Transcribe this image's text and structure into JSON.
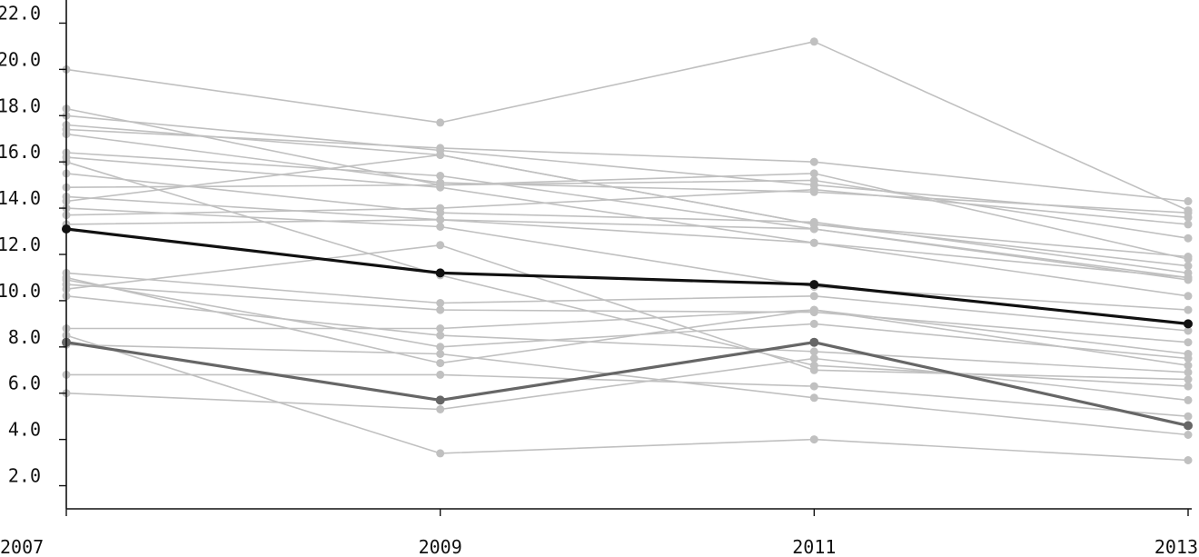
{
  "chart_data": {
    "type": "line",
    "title": "",
    "xlabel": "",
    "ylabel": "",
    "x": [
      "2007",
      "2009",
      "2011",
      "2013"
    ],
    "ylim": [
      1.0,
      23.0
    ],
    "y_ticks": [
      "2.0",
      "4.0",
      "6.0",
      "8.0",
      "10.0",
      "12.0",
      "14.0",
      "16.0",
      "18.0",
      "20.0",
      "22.0"
    ],
    "grid": false,
    "legend": "none",
    "colors": {
      "background": "#c0c0c0",
      "highlight_dark": "#111111",
      "highlight_mid": "#666666",
      "axis": "#111111"
    },
    "series": [
      {
        "values": [
          20.0,
          17.7,
          21.2,
          13.9
        ],
        "style": "background"
      },
      {
        "values": [
          18.3,
          15.0,
          15.5,
          11.8
        ],
        "style": "background"
      },
      {
        "values": [
          18.0,
          16.5,
          15.0,
          13.6
        ],
        "style": "background"
      },
      {
        "values": [
          17.6,
          16.3,
          13.3,
          11.5
        ],
        "style": "background"
      },
      {
        "values": [
          17.4,
          16.6,
          16.0,
          14.3
        ],
        "style": "background"
      },
      {
        "values": [
          17.2,
          15.1,
          14.7,
          13.8
        ],
        "style": "background"
      },
      {
        "values": [
          16.4,
          15.4,
          13.1,
          10.9
        ],
        "style": "background"
      },
      {
        "values": [
          16.2,
          14.9,
          12.5,
          11.0
        ],
        "style": "background"
      },
      {
        "values": [
          16.0,
          11.1,
          7.2,
          6.3
        ],
        "style": "background"
      },
      {
        "values": [
          15.5,
          13.8,
          13.4,
          11.2
        ],
        "style": "background"
      },
      {
        "values": [
          14.9,
          15.0,
          15.2,
          12.7
        ],
        "style": "background"
      },
      {
        "values": [
          14.5,
          13.5,
          12.5,
          10.2
        ],
        "style": "background"
      },
      {
        "values": [
          14.3,
          16.3,
          13.3,
          11.9
        ],
        "style": "background"
      },
      {
        "values": [
          14.0,
          13.2,
          10.6,
          9.6
        ],
        "style": "background"
      },
      {
        "values": [
          13.7,
          14.0,
          14.8,
          13.3
        ],
        "style": "background"
      },
      {
        "values": [
          13.3,
          13.5,
          13.1,
          11.0
        ],
        "style": "background"
      },
      {
        "values": [
          11.2,
          9.9,
          10.2,
          8.7
        ],
        "style": "background"
      },
      {
        "values": [
          11.0,
          7.3,
          9.6,
          7.2
        ],
        "style": "background"
      },
      {
        "values": [
          10.9,
          8.0,
          9.0,
          7.5
        ],
        "style": "background"
      },
      {
        "values": [
          10.7,
          9.6,
          9.5,
          8.2
        ],
        "style": "background"
      },
      {
        "values": [
          10.5,
          12.4,
          7.0,
          6.6
        ],
        "style": "background"
      },
      {
        "values": [
          10.2,
          8.5,
          7.8,
          6.9
        ],
        "style": "background"
      },
      {
        "values": [
          8.8,
          8.8,
          9.6,
          7.7
        ],
        "style": "background"
      },
      {
        "values": [
          8.5,
          3.4,
          4.0,
          3.1
        ],
        "style": "background"
      },
      {
        "values": [
          8.1,
          7.7,
          5.8,
          4.2
        ],
        "style": "background"
      },
      {
        "values": [
          6.8,
          6.8,
          6.3,
          5.0
        ],
        "style": "background"
      },
      {
        "values": [
          6.0,
          5.3,
          7.5,
          5.7
        ],
        "style": "background"
      },
      {
        "values": [
          13.1,
          11.2,
          10.7,
          9.0
        ],
        "style": "highlight_dark"
      },
      {
        "values": [
          8.2,
          5.7,
          8.2,
          4.6
        ],
        "style": "highlight_mid"
      }
    ]
  }
}
